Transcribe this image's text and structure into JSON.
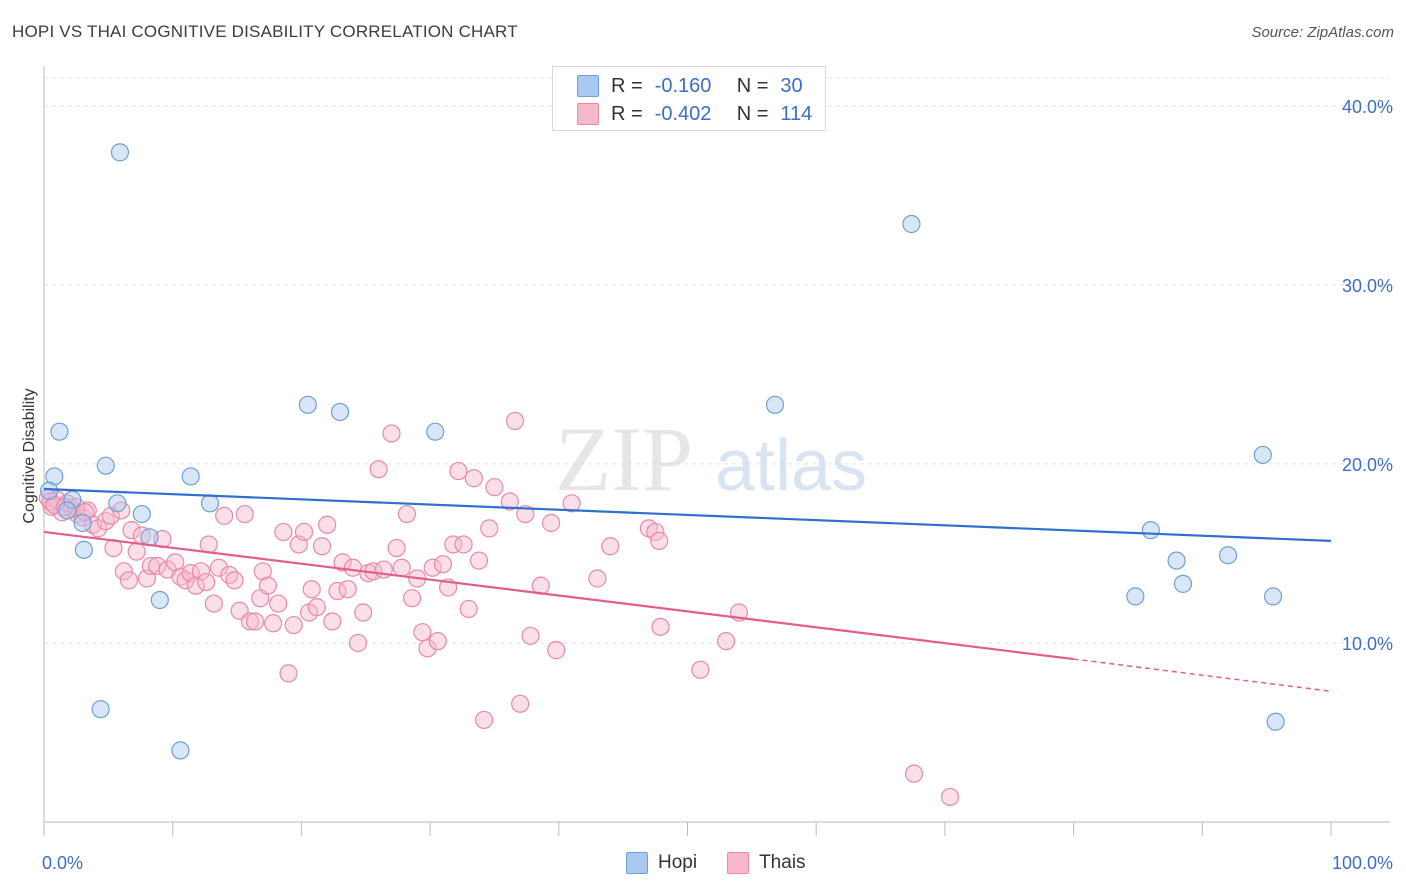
{
  "title": "HOPI VS THAI COGNITIVE DISABILITY CORRELATION CHART",
  "source": "Source: ZipAtlas.com",
  "watermark": {
    "zip": "ZIP",
    "atlas": "atlas"
  },
  "legend": {
    "rows": [
      {
        "r_label": "R =",
        "r_value": "-0.160",
        "n_label": "N =",
        "n_value": "30",
        "color": "#a8c8f0",
        "border": "#6f9fd8"
      },
      {
        "r_label": "R =",
        "r_value": "-0.402",
        "n_label": "N =",
        "n_value": "114",
        "color": "#f7b8cb",
        "border": "#e88aa6"
      }
    ]
  },
  "bottom_legend": [
    {
      "label": "Hopi",
      "color": "#a8c8f0",
      "border": "#6f9fd8"
    },
    {
      "label": "Thais",
      "color": "#f7b8cb",
      "border": "#e88aa6"
    }
  ],
  "chart_data": {
    "type": "scatter",
    "title": "HOPI VS THAI COGNITIVE DISABILITY CORRELATION CHART",
    "xlabel": "",
    "ylabel": "Cognitive Disability",
    "xlim": [
      0,
      100
    ],
    "ylim": [
      0,
      42
    ],
    "x_tick_labels": [
      "0.0%",
      "100.0%"
    ],
    "y_ticks": [
      10,
      20,
      30,
      40
    ],
    "y_tick_labels": [
      "10.0%",
      "20.0%",
      "30.0%",
      "40.0%"
    ],
    "grid": true,
    "legend_position": "top-center",
    "series": [
      {
        "name": "Hopi",
        "color": "#a8c8f0",
        "stroke": "#6f9fd8",
        "trend": {
          "x": [
            0,
            100
          ],
          "y": [
            18.6,
            15.7
          ],
          "color": "#2f6fcf"
        },
        "points": [
          [
            5.9,
            37.4
          ],
          [
            67.4,
            33.4
          ],
          [
            20.5,
            23.3
          ],
          [
            23.0,
            22.9
          ],
          [
            30.4,
            21.8
          ],
          [
            56.8,
            23.3
          ],
          [
            1.2,
            21.8
          ],
          [
            4.8,
            19.9
          ],
          [
            11.4,
            19.3
          ],
          [
            0.8,
            19.3
          ],
          [
            94.7,
            20.5
          ],
          [
            0.4,
            18.5
          ],
          [
            2.2,
            18.0
          ],
          [
            5.7,
            17.8
          ],
          [
            12.9,
            17.8
          ],
          [
            7.6,
            17.2
          ],
          [
            1.8,
            17.4
          ],
          [
            3.0,
            16.7
          ],
          [
            8.2,
            15.9
          ],
          [
            3.1,
            15.2
          ],
          [
            86.0,
            16.3
          ],
          [
            88.0,
            14.6
          ],
          [
            92.0,
            14.9
          ],
          [
            88.5,
            13.3
          ],
          [
            84.8,
            12.6
          ],
          [
            95.5,
            12.6
          ],
          [
            9.0,
            12.4
          ],
          [
            4.4,
            6.3
          ],
          [
            10.6,
            4.0
          ],
          [
            95.7,
            5.6
          ]
        ]
      },
      {
        "name": "Thais",
        "color": "#f7b8cb",
        "stroke": "#e88aa6",
        "trend": {
          "x": [
            0,
            80
          ],
          "y": [
            16.2,
            9.1
          ],
          "dash_x": [
            80,
            100
          ],
          "dash_y": [
            9.1,
            7.3
          ],
          "color": "#e35d8a"
        },
        "points": [
          [
            0.3,
            18.1
          ],
          [
            0.6,
            17.6
          ],
          [
            1.0,
            18.0
          ],
          [
            1.4,
            17.3
          ],
          [
            1.8,
            17.8
          ],
          [
            2.2,
            17.5
          ],
          [
            2.6,
            17.2
          ],
          [
            3.0,
            17.0
          ],
          [
            3.4,
            17.4
          ],
          [
            3.8,
            16.6
          ],
          [
            4.2,
            16.4
          ],
          [
            4.8,
            16.8
          ],
          [
            5.4,
            15.3
          ],
          [
            5.2,
            17.1
          ],
          [
            6.2,
            14.0
          ],
          [
            6.6,
            13.5
          ],
          [
            6.8,
            16.3
          ],
          [
            7.2,
            15.1
          ],
          [
            7.6,
            16.0
          ],
          [
            8.0,
            13.6
          ],
          [
            8.3,
            14.3
          ],
          [
            8.8,
            14.3
          ],
          [
            9.2,
            15.8
          ],
          [
            9.6,
            14.1
          ],
          [
            10.2,
            14.5
          ],
          [
            10.6,
            13.7
          ],
          [
            11.0,
            13.5
          ],
          [
            11.4,
            13.9
          ],
          [
            11.8,
            13.2
          ],
          [
            12.2,
            14.0
          ],
          [
            12.6,
            13.4
          ],
          [
            12.8,
            15.5
          ],
          [
            13.2,
            12.2
          ],
          [
            13.6,
            14.2
          ],
          [
            14.0,
            17.1
          ],
          [
            14.4,
            13.8
          ],
          [
            14.8,
            13.5
          ],
          [
            15.2,
            11.8
          ],
          [
            15.6,
            17.2
          ],
          [
            16.0,
            11.2
          ],
          [
            16.4,
            11.2
          ],
          [
            16.8,
            12.5
          ],
          [
            17.0,
            14.0
          ],
          [
            17.4,
            13.2
          ],
          [
            17.8,
            11.1
          ],
          [
            18.2,
            12.2
          ],
          [
            18.6,
            16.2
          ],
          [
            19.0,
            8.3
          ],
          [
            19.4,
            11.0
          ],
          [
            19.8,
            15.5
          ],
          [
            20.2,
            16.2
          ],
          [
            20.6,
            11.7
          ],
          [
            20.8,
            13.0
          ],
          [
            21.2,
            12.0
          ],
          [
            21.6,
            15.4
          ],
          [
            22.0,
            16.6
          ],
          [
            22.4,
            11.2
          ],
          [
            22.8,
            12.9
          ],
          [
            23.2,
            14.5
          ],
          [
            23.6,
            13.0
          ],
          [
            24.0,
            14.2
          ],
          [
            24.4,
            10.0
          ],
          [
            24.8,
            11.7
          ],
          [
            25.2,
            13.9
          ],
          [
            25.6,
            14.0
          ],
          [
            26.0,
            19.7
          ],
          [
            26.4,
            14.1
          ],
          [
            27.0,
            21.7
          ],
          [
            27.4,
            15.3
          ],
          [
            27.8,
            14.2
          ],
          [
            28.2,
            17.2
          ],
          [
            28.6,
            12.5
          ],
          [
            29.0,
            13.6
          ],
          [
            29.4,
            10.6
          ],
          [
            29.8,
            9.7
          ],
          [
            30.2,
            14.2
          ],
          [
            30.6,
            10.1
          ],
          [
            31.0,
            14.4
          ],
          [
            31.4,
            13.1
          ],
          [
            31.8,
            15.5
          ],
          [
            32.2,
            19.6
          ],
          [
            32.6,
            15.5
          ],
          [
            33.0,
            11.9
          ],
          [
            33.4,
            19.2
          ],
          [
            33.8,
            14.6
          ],
          [
            34.2,
            5.7
          ],
          [
            34.6,
            16.4
          ],
          [
            35.0,
            18.7
          ],
          [
            36.2,
            17.9
          ],
          [
            36.6,
            22.4
          ],
          [
            37.0,
            6.6
          ],
          [
            37.4,
            17.2
          ],
          [
            37.8,
            10.4
          ],
          [
            38.6,
            13.2
          ],
          [
            39.4,
            16.7
          ],
          [
            39.8,
            9.6
          ],
          [
            41.0,
            17.8
          ],
          [
            43.0,
            13.6
          ],
          [
            44.0,
            15.4
          ],
          [
            47.0,
            16.4
          ],
          [
            47.5,
            16.2
          ],
          [
            47.8,
            15.7
          ],
          [
            47.9,
            10.9
          ],
          [
            51.0,
            8.5
          ],
          [
            53.0,
            10.1
          ],
          [
            54.0,
            11.7
          ],
          [
            67.6,
            2.7
          ],
          [
            70.4,
            1.4
          ],
          [
            0.5,
            17.9
          ],
          [
            2.5,
            17.6
          ],
          [
            6.0,
            17.4
          ],
          [
            3.2,
            17.3
          ],
          [
            0.8,
            17.7
          ],
          [
            1.6,
            17.6
          ]
        ]
      }
    ]
  }
}
